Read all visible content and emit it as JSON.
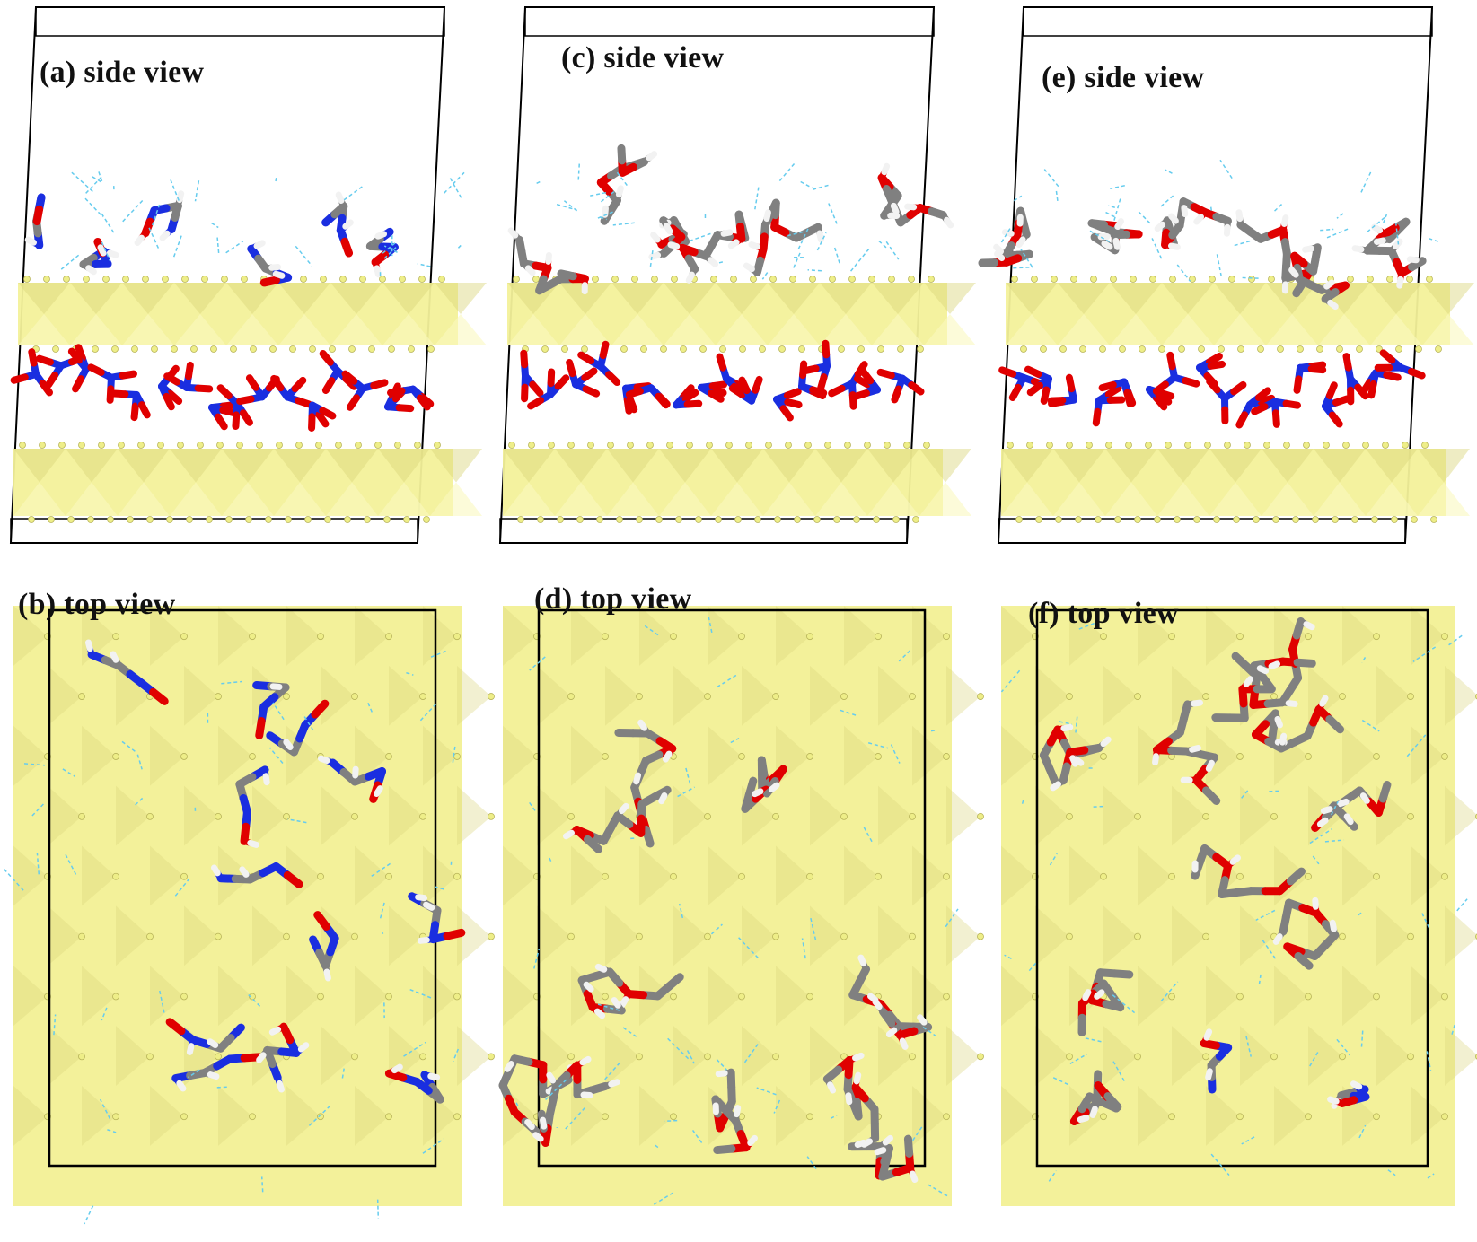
{
  "figure": {
    "panels": [
      {
        "id": "a",
        "label": "(a) side view",
        "view": "side"
      },
      {
        "id": "b",
        "label": "(b) top view",
        "view": "top"
      },
      {
        "id": "c",
        "label": "(c) side view",
        "view": "side"
      },
      {
        "id": "d",
        "label": "(d) top view",
        "view": "top"
      },
      {
        "id": "e",
        "label": "(e) side view",
        "view": "side"
      },
      {
        "id": "f",
        "label": "(f) top view",
        "view": "top"
      }
    ],
    "colors": {
      "polyhedra": "#f3f19a",
      "polyhedra_dark": "#d9d47a",
      "hydroxyl_oxygen": "#eeee88",
      "carbon": "#808080",
      "oxygen": "#e00000",
      "nitrogen": "#1a2ee0",
      "hydrogen": "#f2f2f2",
      "hydrogen_bond": "#66ccee",
      "cell_box": "#000000"
    }
  }
}
